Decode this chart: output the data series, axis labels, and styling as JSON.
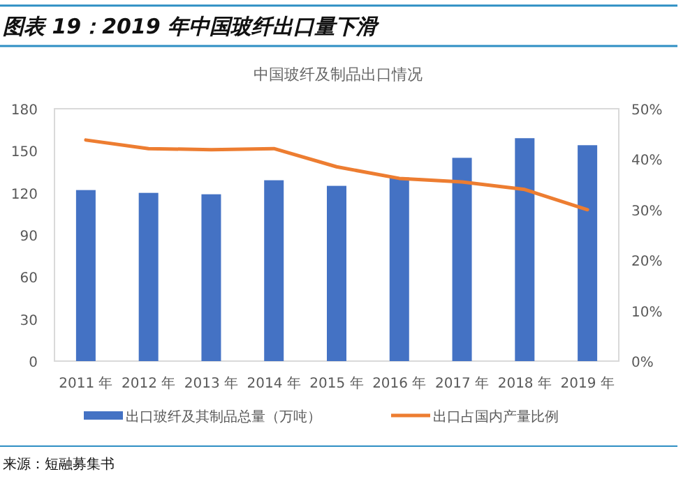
{
  "chart_data": {
    "type": "bar",
    "title": "图表 19：2019 年中国玻纤出口量下滑",
    "subtitle": "中国玻纤及制品出口情况",
    "categories": [
      "2011 年",
      "2012 年",
      "2013 年",
      "2014 年",
      "2015 年",
      "2016 年",
      "2017 年",
      "2018 年",
      "2019 年"
    ],
    "series": [
      {
        "name": "出口玻纤及其制品总量（万吨）",
        "color": "#4472c4",
        "values": [
          122,
          120,
          119,
          129,
          125,
          131,
          145,
          159,
          154
        ]
      },
      {
        "name": "出口占国内产量比例",
        "type": "line",
        "axis": "y2",
        "color": "#ed7d31",
        "values": [
          43.8,
          42.1,
          41.9,
          42.1,
          38.5,
          36.2,
          35.5,
          34,
          30
        ]
      }
    ],
    "ylim": [
      0,
      180
    ],
    "yticks": [
      0,
      30,
      60,
      90,
      120,
      150,
      180
    ],
    "y2lim": [
      0,
      50
    ],
    "y2ticks": [
      {
        "value": 0,
        "label": "0%"
      },
      {
        "value": 10,
        "label": "10%"
      },
      {
        "value": 20,
        "label": "20%"
      },
      {
        "value": 30,
        "label": "30%"
      },
      {
        "value": 40,
        "label": "40%"
      },
      {
        "value": 50,
        "label": "50%"
      }
    ],
    "grid": false,
    "legend": "bottom",
    "marker": "none",
    "annotations": [
      "来源：短融募集书"
    ]
  }
}
